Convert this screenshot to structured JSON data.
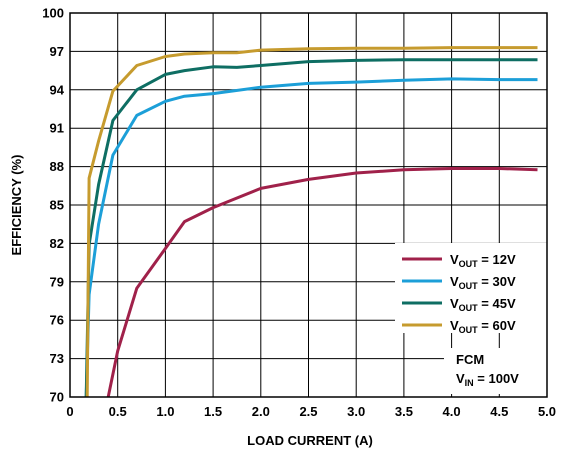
{
  "chart_data": {
    "type": "line",
    "title": "",
    "xlabel": "LOAD CURRENT (A)",
    "ylabel": "EFFICIENCY (%)",
    "xlim": [
      0,
      5.0
    ],
    "ylim": [
      70,
      100
    ],
    "x_ticks": [
      0,
      0.5,
      1.0,
      1.5,
      2.0,
      2.5,
      3.0,
      3.5,
      4.0,
      4.5,
      5.0
    ],
    "x_tick_labels": [
      "0",
      "0.5",
      "1.0",
      "1.5",
      "2.0",
      "2.5",
      "3.0",
      "3.5",
      "4.0",
      "4.5",
      "5.0"
    ],
    "y_ticks": [
      70,
      73,
      76,
      79,
      82,
      85,
      88,
      91,
      94,
      97,
      100
    ],
    "y_tick_labels": [
      "70",
      "73",
      "76",
      "79",
      "82",
      "85",
      "88",
      "91",
      "94",
      "97",
      "100"
    ],
    "grid": true,
    "legend_position": "right",
    "series": [
      {
        "name_main": "V",
        "name_sub": "OUT",
        "name_rest": " = 12V",
        "color": "#a0214a",
        "x": [
          0.4,
          0.5,
          0.7,
          1.0,
          1.2,
          1.5,
          2.0,
          2.5,
          3.0,
          3.5,
          4.0,
          4.5,
          4.9
        ],
        "y": [
          70,
          73.6,
          78.5,
          81.6,
          83.7,
          84.8,
          86.3,
          87.0,
          87.5,
          87.75,
          87.85,
          87.85,
          87.75
        ]
      },
      {
        "name_main": "V",
        "name_sub": "OUT",
        "name_rest": " = 30V",
        "color": "#1c9fd8",
        "x": [
          0.17,
          0.2,
          0.3,
          0.45,
          0.7,
          1.0,
          1.2,
          1.5,
          2.0,
          2.5,
          3.0,
          3.5,
          4.0,
          4.5,
          4.9
        ],
        "y": [
          70,
          78.0,
          83.5,
          88.9,
          92.0,
          93.1,
          93.5,
          93.7,
          94.2,
          94.5,
          94.6,
          94.75,
          94.85,
          94.8,
          94.8
        ]
      },
      {
        "name_main": "V",
        "name_sub": "OUT",
        "name_rest": " = 45V",
        "color": "#0e6e63",
        "x": [
          0.17,
          0.2,
          0.3,
          0.45,
          0.7,
          1.0,
          1.2,
          1.5,
          1.75,
          2.0,
          2.5,
          3.0,
          3.5,
          4.0,
          4.5,
          4.9
        ],
        "y": [
          70,
          81.9,
          86.6,
          91.6,
          94.0,
          95.2,
          95.5,
          95.8,
          95.75,
          95.9,
          96.2,
          96.3,
          96.35,
          96.35,
          96.35,
          96.35
        ]
      },
      {
        "name_main": "V",
        "name_sub": "OUT",
        "name_rest": " = 60V",
        "color": "#c69b2e",
        "x": [
          0.18,
          0.2,
          0.3,
          0.45,
          0.7,
          1.0,
          1.2,
          1.5,
          1.75,
          2.0,
          2.5,
          3.0,
          3.5,
          4.0,
          4.5,
          4.9
        ],
        "y": [
          70,
          87.1,
          90.0,
          93.9,
          95.9,
          96.6,
          96.8,
          96.9,
          96.9,
          97.1,
          97.2,
          97.25,
          97.25,
          97.3,
          97.3,
          97.3
        ]
      }
    ],
    "annotation": {
      "line1": "FCM",
      "line2_main": "V",
      "line2_sub": "IN",
      "line2_rest": " = 100V"
    }
  }
}
